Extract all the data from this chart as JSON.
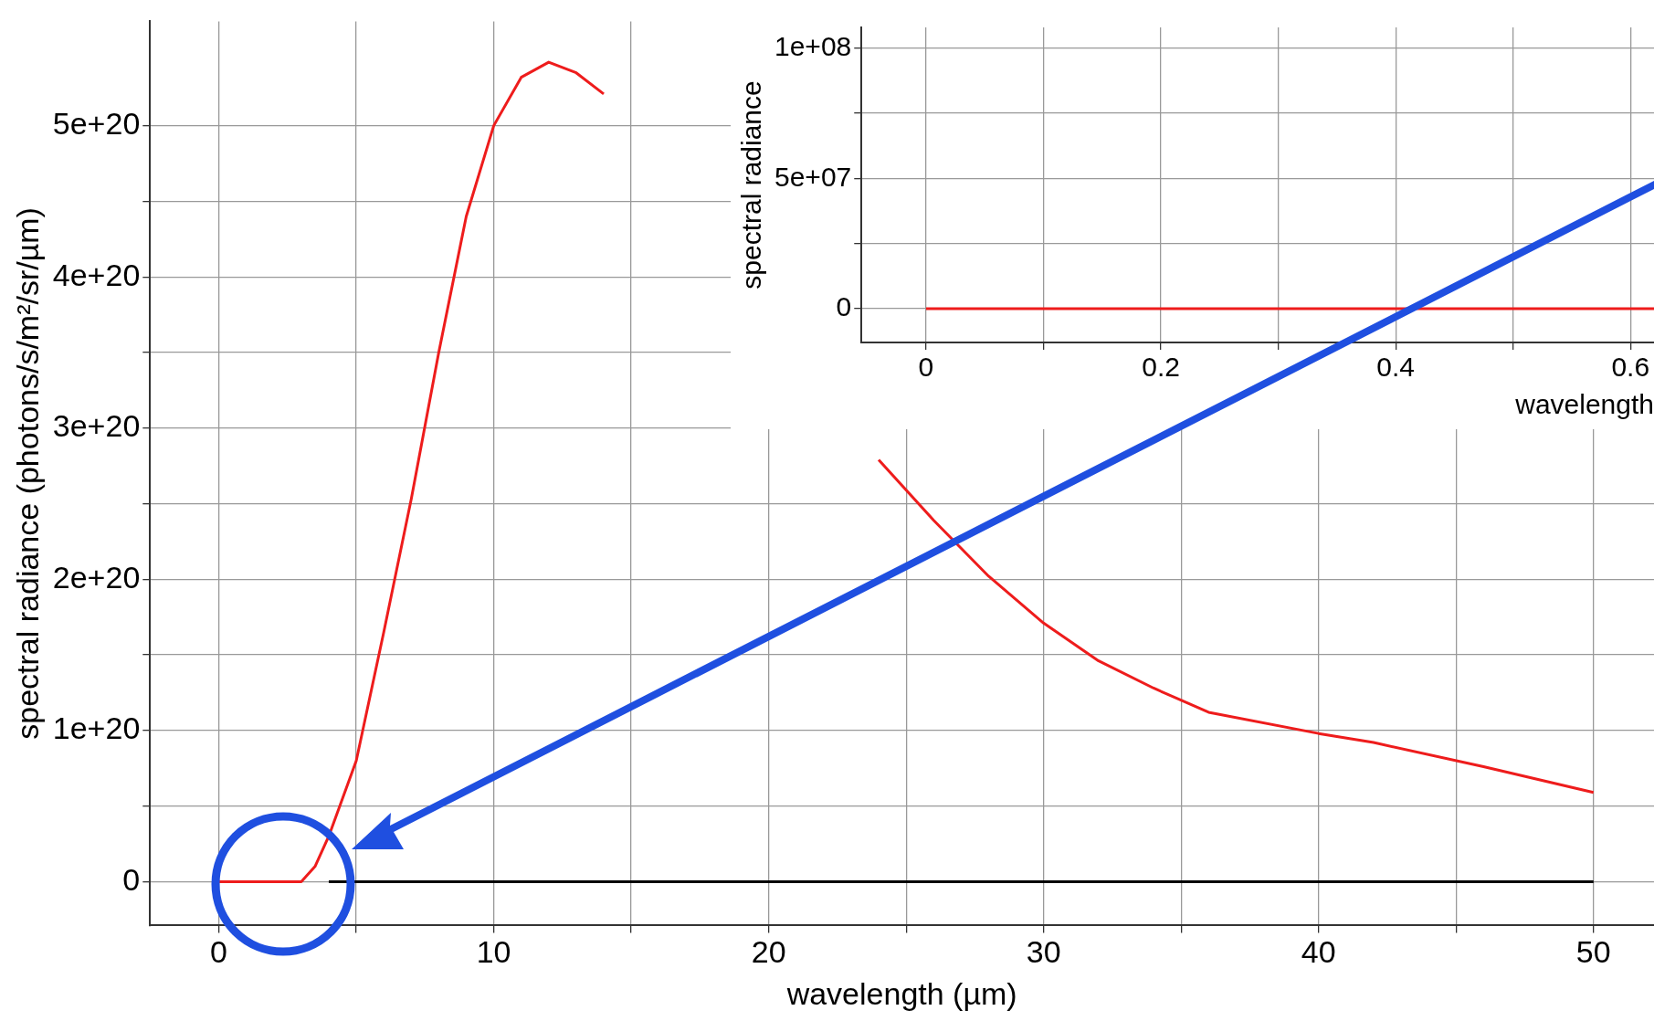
{
  "chart_data": [
    {
      "type": "line",
      "xlabel": "wavelength (µm)",
      "ylabel": "spectral radiance (photons/s/m²/sr/µm)",
      "x": [
        0,
        1,
        2,
        3,
        3.5,
        4,
        5,
        6,
        7,
        8,
        9,
        10,
        11,
        12,
        13,
        14,
        15,
        24,
        26,
        28,
        30,
        32,
        34,
        36,
        40,
        42,
        46,
        50
      ],
      "series": [
        {
          "color": "#ee1c1c",
          "values": [
            0,
            0,
            0,
            0,
            1e+19,
            3e+19,
            8e+19,
            1.65e+20,
            2.53e+20,
            3.5e+20,
            4.4e+20,
            5e+20,
            5.32e+20,
            5.42e+20,
            5.35e+20,
            5.21e+20,
            null,
            2.79e+20,
            2.39e+20,
            2.02e+20,
            1.71e+20,
            1.46e+20,
            1.28e+20,
            1.12e+20,
            9.8e+19,
            9.2e+19,
            7.6e+19,
            5.9e+19
          ]
        },
        {
          "color": "#000000",
          "x": [
            4,
            50
          ],
          "values": [
            0,
            0
          ]
        }
      ],
      "xlim": [
        -2.5,
        52.2
      ],
      "ylim": [
        -2.9e+19,
        5.69e+20
      ],
      "xticks": [
        0,
        {
          "value": 5,
          "label": null
        },
        10,
        {
          "value": 15,
          "label": null
        },
        20,
        {
          "value": 25,
          "label": null
        },
        30,
        {
          "value": 35,
          "label": null
        },
        40,
        {
          "value": 45,
          "label": null
        },
        50
      ],
      "yticks": [
        0,
        {
          "value": 5e+19,
          "label": null
        },
        {
          "value": 1e+20,
          "label": "1e+20"
        },
        {
          "value": 1.5e+20,
          "label": null
        },
        {
          "value": 2e+20,
          "label": "2e+20"
        },
        {
          "value": 2.5e+20,
          "label": null
        },
        {
          "value": 3e+20,
          "label": "3e+20"
        },
        {
          "value": 3.5e+20,
          "label": null
        },
        {
          "value": 4e+20,
          "label": "4e+20"
        },
        {
          "value": 4.5e+20,
          "label": null
        },
        {
          "value": 5e+20,
          "label": "5e+20"
        }
      ],
      "grid": true,
      "legend": false,
      "line_style": "solid",
      "marker": "none"
    },
    {
      "type": "line",
      "xlabel": "wavelength",
      "ylabel": "spectral radiance",
      "x": [
        0,
        0.62
      ],
      "series": [
        {
          "color": "#ee1c1c",
          "values": [
            0,
            0
          ]
        }
      ],
      "xlim": [
        -0.055,
        0.62
      ],
      "ylim": [
        -13000000.0,
        108000000.0
      ],
      "xticks": [
        0,
        {
          "value": 0.1,
          "label": null
        },
        0.2,
        {
          "value": 0.3,
          "label": null
        },
        0.4,
        {
          "value": 0.5,
          "label": null
        },
        0.6
      ],
      "yticks": [
        0,
        {
          "value": 25000000.0,
          "label": null
        },
        {
          "value": 50000000.0,
          "label": "5e+07"
        },
        {
          "value": 75000000.0,
          "label": null
        },
        {
          "value": 100000000.0,
          "label": "1e+08"
        }
      ],
      "grid": true,
      "legend": false,
      "line_style": "solid",
      "marker": "none"
    }
  ]
}
